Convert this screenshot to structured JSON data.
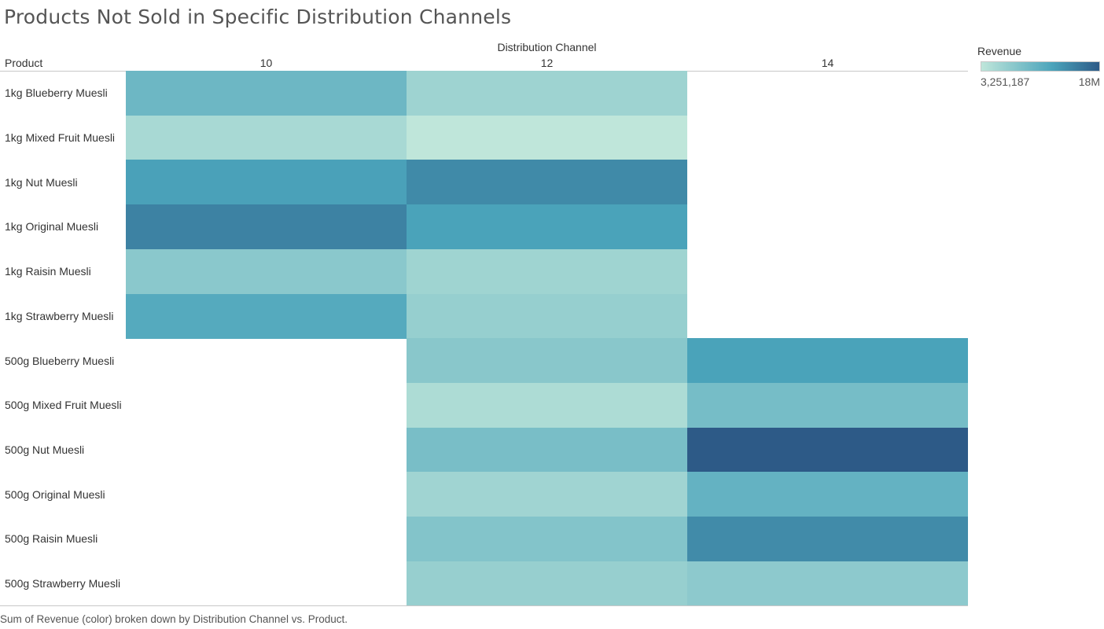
{
  "title": "Products Not Sold in Specific Distribution Channels",
  "caption": "Sum of Revenue (color) broken down by Distribution Channel vs. Product.",
  "legend": {
    "title": "Revenue",
    "min_label": "3,251,187",
    "max_label": "18M",
    "color_low": "#bfe6da",
    "color_mid": "#4ba4bb",
    "color_high": "#2d5a87"
  },
  "chart_data": {
    "type": "heatmap",
    "title": "Products Not Sold in Specific Distribution Channels",
    "row_header": "Product",
    "col_header": "Distribution Channel",
    "columns": [
      "10",
      "12",
      "14"
    ],
    "rows": [
      "1kg Blueberry Muesli",
      "1kg Mixed Fruit Muesli",
      "1kg Nut Muesli",
      "1kg Original Muesli",
      "1kg Raisin Muesli",
      "1kg Strawberry Muesli",
      "500g Blueberry Muesli",
      "500g Mixed Fruit Muesli",
      "500g Nut Muesli",
      "500g Original Muesli",
      "500g Raisin Muesli",
      "500g Strawberry Muesli"
    ],
    "values": [
      [
        9500000,
        5800000,
        null
      ],
      [
        5000000,
        3251187,
        null
      ],
      [
        12300000,
        14200000,
        null
      ],
      [
        14800000,
        12200000,
        null
      ],
      [
        7300000,
        5700000,
        null
      ],
      [
        11300000,
        6400000,
        null
      ],
      [
        null,
        7400000,
        12200000
      ],
      [
        null,
        4600000,
        8800000
      ],
      [
        null,
        8600000,
        18000000
      ],
      [
        null,
        5600000,
        10200000
      ],
      [
        null,
        7800000,
        14100000
      ],
      [
        null,
        6300000,
        7100000
      ]
    ],
    "color_range": [
      3251187,
      18000000
    ],
    "legend_placement": "top-right"
  }
}
